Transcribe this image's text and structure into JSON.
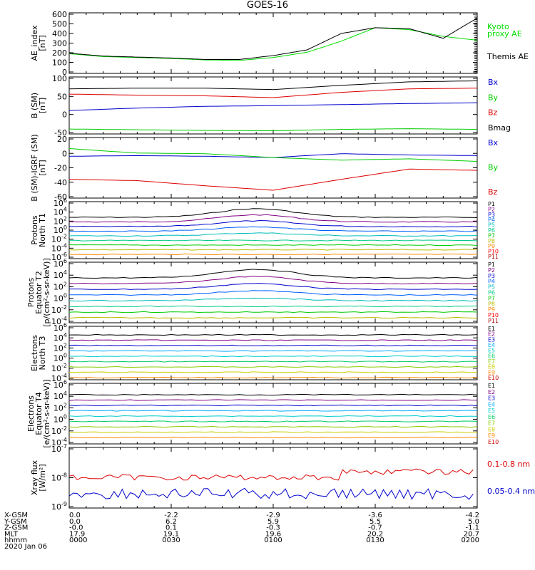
{
  "title": "GOES-16",
  "panels": [
    {
      "id": "ae",
      "ylabel": [
        "AE_index",
        "[nT]"
      ],
      "ticks": [
        "600",
        "500",
        "400",
        "300",
        "200",
        "100",
        "0"
      ],
      "legend": [
        {
          "text": "Kyoto",
          "color": "#00dd00"
        },
        {
          "text": "proxy AE",
          "color": "#00dd00"
        },
        {
          "text": "Themis AE",
          "color": "#000000"
        }
      ]
    },
    {
      "id": "bsm",
      "ylabel": [
        "B (SM)",
        "[nT]"
      ],
      "ticks": [
        "100",
        "50",
        "0",
        "-50"
      ],
      "legend": [
        {
          "text": "Bx",
          "color": "#0000cc"
        },
        {
          "text": "By",
          "color": "#00cc00"
        },
        {
          "text": "Bz",
          "color": "#dd0000"
        },
        {
          "text": "Bmag",
          "color": "#000000"
        }
      ]
    },
    {
      "id": "bigrf",
      "ylabel": [
        "B (SM)-IGRF (SM)",
        "[nT]"
      ],
      "ticks": [
        "20",
        "0",
        "-20",
        "-40",
        "-60"
      ],
      "legend": [
        {
          "text": "Bx",
          "color": "#0000cc"
        },
        {
          "text": "By",
          "color": "#00cc00"
        },
        {
          "text": "Bz",
          "color": "#dd0000"
        }
      ]
    },
    {
      "id": "pn",
      "ylabel": [
        "Protons",
        "North T1"
      ],
      "ticks": [
        "10^6",
        "10^4",
        "10^2",
        "10^0",
        "10^-2",
        "10^-4",
        "10^-6"
      ],
      "legend": [
        {
          "text": "P1"
        },
        {
          "text": "P2"
        },
        {
          "text": "P3"
        },
        {
          "text": "P4"
        },
        {
          "text": "P5"
        },
        {
          "text": "P6"
        },
        {
          "text": "P7"
        },
        {
          "text": "P8"
        },
        {
          "text": "P9"
        },
        {
          "text": "P10"
        },
        {
          "text": "P11"
        }
      ]
    },
    {
      "id": "pe",
      "ylabel": [
        "Protons",
        "Equator T2",
        "[p/(cm²-s-sr-keV)]"
      ],
      "ticks": [
        "10^6",
        "10^4",
        "10^2",
        "10^0",
        "10^-2",
        "10^-4"
      ],
      "legend": [
        {
          "text": "P1"
        },
        {
          "text": "P2"
        },
        {
          "text": "P3"
        },
        {
          "text": "P4"
        },
        {
          "text": "P5"
        },
        {
          "text": "P6"
        },
        {
          "text": "P7"
        },
        {
          "text": "P8"
        },
        {
          "text": "P9"
        },
        {
          "text": "P10"
        },
        {
          "text": "P11"
        }
      ]
    },
    {
      "id": "en",
      "ylabel": [
        "Electrons",
        "North T3"
      ],
      "ticks": [
        "10^6",
        "10^4",
        "10^2",
        "10^0",
        "10^-2",
        "10^-4"
      ],
      "legend": [
        {
          "text": "E1"
        },
        {
          "text": "E2"
        },
        {
          "text": "E3"
        },
        {
          "text": "E4"
        },
        {
          "text": "E5"
        },
        {
          "text": "E6"
        },
        {
          "text": "E7"
        },
        {
          "text": "E8"
        },
        {
          "text": "E9"
        },
        {
          "text": "E10"
        }
      ]
    },
    {
      "id": "ee",
      "ylabel": [
        "Electrons",
        "Equator T4",
        "[e/(cm²-s-sr-keV)]"
      ],
      "ticks": [
        "10^6",
        "10^4",
        "10^2",
        "10^0",
        "10^-2",
        "10^-4"
      ],
      "legend": [
        {
          "text": "E1"
        },
        {
          "text": "E2"
        },
        {
          "text": "E3"
        },
        {
          "text": "E4"
        },
        {
          "text": "E5"
        },
        {
          "text": "E6"
        },
        {
          "text": "E7"
        },
        {
          "text": "E8"
        },
        {
          "text": "E9"
        },
        {
          "text": "E10"
        }
      ]
    },
    {
      "id": "xray",
      "ylabel": [
        "Xray flux",
        "[W/m²]"
      ],
      "ticks": [
        "10^-7",
        "10^-8",
        "10^-9"
      ],
      "legend": [
        {
          "text": "0.1-0.8 nm",
          "color": "#dd0000"
        },
        {
          "text": "0.05-0.4 nm",
          "color": "#0000cc"
        }
      ]
    }
  ],
  "channel_colors": [
    "#000000",
    "#800080",
    "#0000cc",
    "#0060ff",
    "#00bbbb",
    "#00cc88",
    "#00cc00",
    "#bbbb00",
    "#ff8800",
    "#ff0000",
    "#aa0000"
  ],
  "electron_colors": [
    "#000000",
    "#800080",
    "#0000cc",
    "#00aaff",
    "#00cccc",
    "#00cc66",
    "#88cc00",
    "#cccc00",
    "#ff8800",
    "#cc0000"
  ],
  "xaxis": {
    "row_labels": [
      "X-GSM",
      "Y-GSM",
      "Z-GSM",
      "MLT",
      "hhmm",
      "2020 Jan 06"
    ],
    "columns": [
      {
        "values": [
          "0.0",
          "0.0",
          "-0.0",
          "17.9",
          "0000"
        ]
      },
      {
        "values": [
          "-2.2",
          "6.2",
          "0.1",
          "19.1",
          "0030"
        ]
      },
      {
        "values": [
          "-2.9",
          "5.9",
          "-0.3",
          "19.6",
          "0100"
        ]
      },
      {
        "values": [
          "-3.6",
          "5.5",
          "-0.7",
          "20.2",
          "0130"
        ]
      },
      {
        "values": [
          "-4.2",
          "5.0",
          "-1.1",
          "20.7",
          "0200"
        ]
      }
    ]
  },
  "chart_data": [
    {
      "type": "line",
      "title": "AE_index",
      "ylim": [
        0,
        600
      ],
      "x_minutes": [
        0,
        10,
        20,
        30,
        40,
        50,
        60,
        70,
        80,
        90,
        100,
        110,
        120
      ],
      "series": [
        {
          "name": "Kyoto proxy AE",
          "values": [
            190,
            160,
            150,
            140,
            125,
            120,
            150,
            205,
            320,
            460,
            440,
            370,
            330
          ]
        },
        {
          "name": "Themis AE",
          "values": [
            195,
            165,
            155,
            145,
            130,
            130,
            170,
            230,
            400,
            460,
            450,
            350,
            560
          ]
        }
      ]
    },
    {
      "type": "line",
      "title": "B (SM)",
      "ylim": [
        -55,
        100
      ],
      "x_minutes": [
        0,
        20,
        40,
        60,
        80,
        100,
        120
      ],
      "series": [
        {
          "name": "Bx",
          "values": [
            8,
            15,
            20,
            22,
            25,
            28,
            30
          ]
        },
        {
          "name": "By",
          "values": [
            -45,
            -47,
            -49,
            -50,
            -46,
            -44,
            -46
          ]
        },
        {
          "name": "Bz",
          "values": [
            55,
            52,
            50,
            45,
            60,
            70,
            72
          ]
        },
        {
          "name": "Bmag",
          "values": [
            70,
            72,
            72,
            68,
            80,
            90,
            93
          ]
        }
      ]
    },
    {
      "type": "line",
      "title": "B (SM)-IGRF (SM)",
      "ylim": [
        -65,
        25
      ],
      "x_minutes": [
        0,
        20,
        40,
        60,
        80,
        100,
        120
      ],
      "series": [
        {
          "name": "Bx",
          "values": [
            -2,
            -1,
            -2,
            -4,
            2,
            0,
            -1
          ]
        },
        {
          "name": "By",
          "values": [
            10,
            3,
            2,
            -4,
            -8,
            -6,
            -10
          ]
        },
        {
          "name": "Bz",
          "values": [
            -38,
            -40,
            -48,
            -55,
            -38,
            -22,
            -24
          ]
        }
      ]
    }
  ]
}
